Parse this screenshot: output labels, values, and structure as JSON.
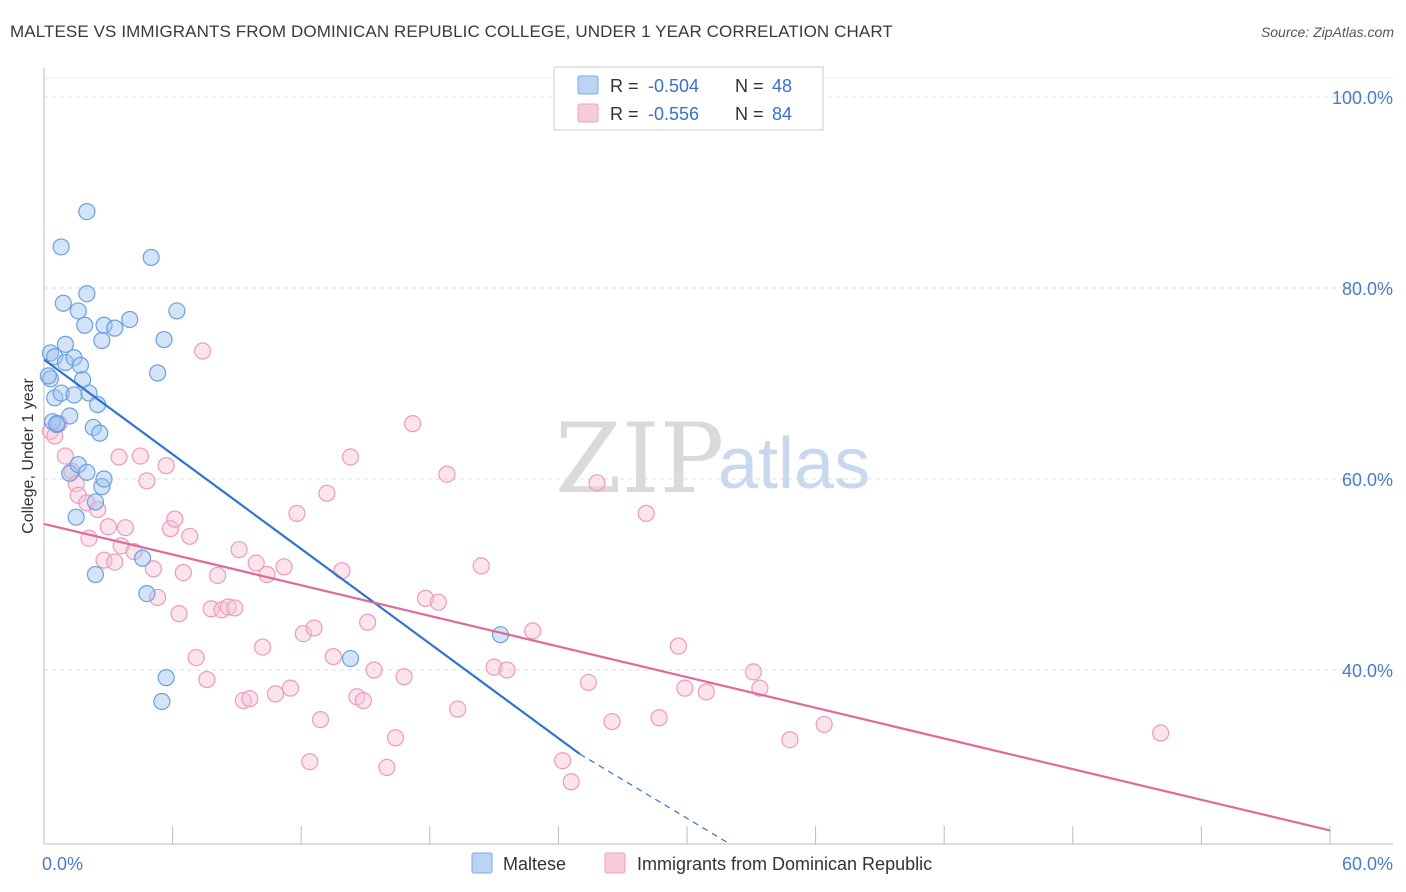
{
  "title": "MALTESE VS IMMIGRANTS FROM DOMINICAN REPUBLIC COLLEGE, UNDER 1 YEAR CORRELATION CHART",
  "source": "Source: ZipAtlas.com",
  "watermark": {
    "zip": "ZIP",
    "atlas": "atlas"
  },
  "legend_stats": [
    {
      "r_label": "R = ",
      "r_value": "-0.504",
      "n_label": "N = ",
      "n_value": "48"
    },
    {
      "r_label": "R = ",
      "r_value": "-0.556",
      "n_label": "N = ",
      "n_value": "84"
    }
  ],
  "chart_data": {
    "type": "scatter",
    "title": "MALTESE VS IMMIGRANTS FROM DOMINICAN REPUBLIC COLLEGE, UNDER 1 YEAR CORRELATION CHART",
    "xlabel": "",
    "ylabel": "College, Under 1 year",
    "xlim": [
      0,
      60
    ],
    "ylim": [
      20,
      103
    ],
    "x_tick_labels": [
      "0.0%",
      "60.0%"
    ],
    "y_tick_labels": [
      "100.0%",
      "80.0%",
      "60.0%",
      "40.0%"
    ],
    "y_ticks": [
      100,
      80,
      60,
      40
    ],
    "grid": true,
    "colors": {
      "Maltese": "#7aaae6",
      "Immigrants from Dominican Republic": "#f0a0bc",
      "maltese_line": "#2f74d0",
      "dominican_line": "#e06a96"
    },
    "series": [
      {
        "name": "Maltese",
        "points": [
          [
            0.3,
            73.2
          ],
          [
            0.3,
            70.5
          ],
          [
            0.4,
            66.0
          ],
          [
            0.5,
            72.8
          ],
          [
            0.5,
            68.5
          ],
          [
            0.6,
            65.7
          ],
          [
            0.8,
            69.0
          ],
          [
            0.8,
            84.3
          ],
          [
            0.9,
            78.4
          ],
          [
            1.0,
            74.1
          ],
          [
            1.0,
            72.2
          ],
          [
            1.2,
            66.6
          ],
          [
            1.2,
            60.6
          ],
          [
            1.4,
            72.7
          ],
          [
            1.4,
            68.8
          ],
          [
            1.5,
            56.0
          ],
          [
            1.6,
            61.5
          ],
          [
            1.6,
            77.6
          ],
          [
            1.7,
            71.9
          ],
          [
            1.8,
            70.4
          ],
          [
            1.9,
            76.1
          ],
          [
            2.0,
            88.0
          ],
          [
            2.0,
            79.4
          ],
          [
            2.1,
            69.0
          ],
          [
            2.3,
            65.4
          ],
          [
            2.4,
            57.6
          ],
          [
            2.4,
            50.0
          ],
          [
            2.5,
            67.8
          ],
          [
            2.6,
            64.8
          ],
          [
            2.7,
            59.2
          ],
          [
            2.7,
            74.5
          ],
          [
            2.8,
            76.1
          ],
          [
            2.8,
            60.0
          ],
          [
            3.3,
            75.8
          ],
          [
            4.0,
            76.7
          ],
          [
            4.6,
            51.7
          ],
          [
            4.8,
            48.0
          ],
          [
            5.0,
            83.2
          ],
          [
            5.3,
            71.1
          ],
          [
            5.5,
            36.7
          ],
          [
            5.6,
            74.6
          ],
          [
            5.7,
            39.2
          ],
          [
            6.2,
            77.6
          ],
          [
            14.3,
            41.2
          ],
          [
            21.3,
            43.7
          ],
          [
            0.6,
            65.8
          ],
          [
            0.2,
            70.8
          ],
          [
            2.0,
            60.7
          ]
        ]
      },
      {
        "name": "Immigrants from Dominican Republic",
        "points": [
          [
            0.3,
            65.0
          ],
          [
            0.5,
            64.5
          ],
          [
            0.7,
            65.8
          ],
          [
            1.0,
            62.4
          ],
          [
            1.3,
            60.8
          ],
          [
            1.5,
            59.5
          ],
          [
            1.6,
            58.3
          ],
          [
            2.0,
            57.5
          ],
          [
            2.1,
            53.8
          ],
          [
            2.5,
            56.8
          ],
          [
            2.8,
            51.5
          ],
          [
            3.0,
            55.0
          ],
          [
            3.3,
            51.3
          ],
          [
            3.5,
            62.3
          ],
          [
            3.6,
            53.0
          ],
          [
            3.8,
            54.9
          ],
          [
            4.2,
            52.4
          ],
          [
            4.5,
            62.4
          ],
          [
            4.8,
            59.8
          ],
          [
            5.1,
            50.6
          ],
          [
            5.3,
            47.6
          ],
          [
            5.7,
            61.4
          ],
          [
            5.9,
            54.8
          ],
          [
            6.1,
            55.8
          ],
          [
            6.3,
            45.9
          ],
          [
            6.5,
            50.2
          ],
          [
            6.8,
            54.0
          ],
          [
            7.1,
            41.3
          ],
          [
            7.4,
            73.4
          ],
          [
            7.6,
            39.0
          ],
          [
            7.8,
            46.4
          ],
          [
            8.1,
            49.9
          ],
          [
            8.3,
            46.3
          ],
          [
            8.6,
            46.6
          ],
          [
            8.9,
            46.5
          ],
          [
            9.1,
            52.6
          ],
          [
            9.3,
            36.8
          ],
          [
            9.6,
            37.0
          ],
          [
            9.9,
            51.2
          ],
          [
            10.2,
            42.4
          ],
          [
            10.4,
            50.0
          ],
          [
            10.8,
            37.5
          ],
          [
            11.2,
            50.8
          ],
          [
            11.5,
            38.1
          ],
          [
            11.8,
            56.4
          ],
          [
            12.1,
            43.8
          ],
          [
            12.4,
            30.4
          ],
          [
            12.6,
            44.4
          ],
          [
            12.9,
            34.8
          ],
          [
            13.2,
            58.5
          ],
          [
            13.5,
            41.4
          ],
          [
            13.9,
            50.4
          ],
          [
            14.3,
            62.3
          ],
          [
            14.6,
            37.2
          ],
          [
            14.9,
            36.8
          ],
          [
            15.1,
            45.0
          ],
          [
            15.4,
            40.0
          ],
          [
            16.0,
            29.8
          ],
          [
            16.4,
            32.9
          ],
          [
            16.8,
            39.3
          ],
          [
            17.2,
            65.8
          ],
          [
            17.8,
            47.5
          ],
          [
            18.4,
            47.1
          ],
          [
            18.8,
            60.5
          ],
          [
            19.3,
            35.9
          ],
          [
            20.4,
            50.9
          ],
          [
            21.0,
            40.3
          ],
          [
            21.6,
            40.0
          ],
          [
            22.8,
            44.1
          ],
          [
            24.2,
            30.5
          ],
          [
            24.6,
            28.3
          ],
          [
            25.4,
            38.7
          ],
          [
            25.8,
            59.6
          ],
          [
            26.5,
            34.6
          ],
          [
            28.1,
            56.4
          ],
          [
            28.7,
            35.0
          ],
          [
            29.6,
            42.5
          ],
          [
            29.9,
            38.1
          ],
          [
            30.9,
            37.7
          ],
          [
            33.1,
            39.8
          ],
          [
            33.4,
            38.1
          ],
          [
            34.8,
            32.7
          ],
          [
            36.4,
            34.3
          ],
          [
            52.1,
            33.4
          ]
        ]
      }
    ],
    "trendlines": [
      {
        "series": "Maltese",
        "x": [
          0,
          25.0
        ],
        "y": [
          72.5,
          31.2
        ],
        "dashed_extension": {
          "x": [
            25.0,
            32.0
          ],
          "y": [
            31.2,
            19.6
          ]
        }
      },
      {
        "series": "Immigrants from Dominican Republic",
        "x": [
          0,
          60
        ],
        "y": [
          55.3,
          23.2
        ]
      }
    ]
  },
  "bottom_legend": [
    {
      "label": "Maltese"
    },
    {
      "label": "Immigrants from Dominican Republic"
    }
  ]
}
